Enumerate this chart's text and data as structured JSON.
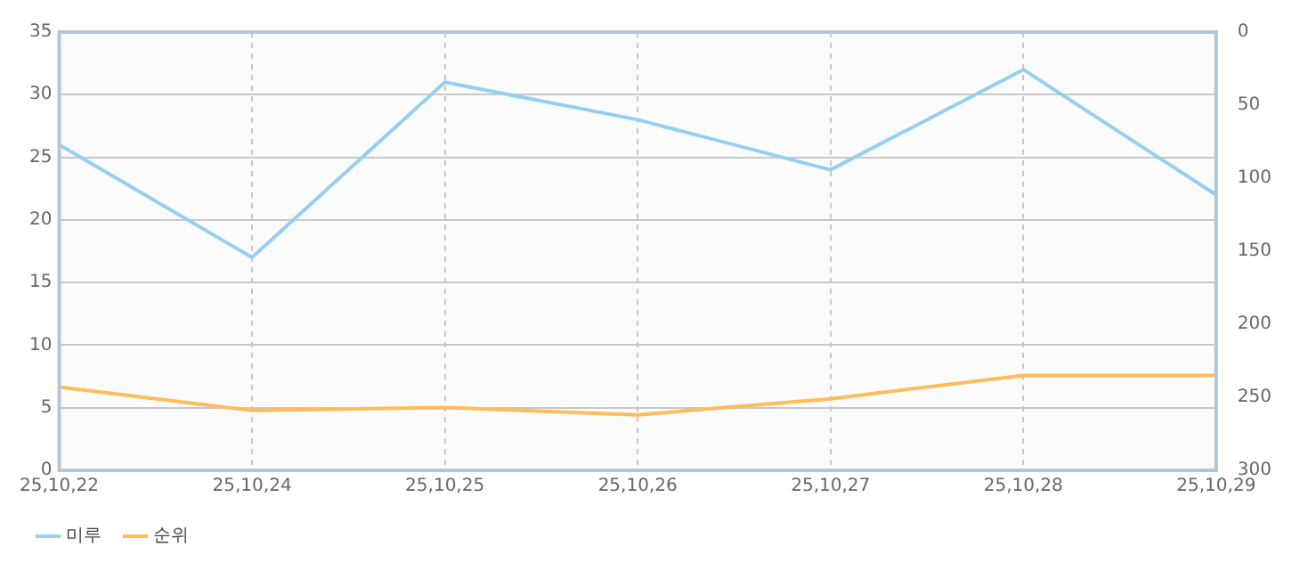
{
  "chart_data": {
    "type": "line",
    "categories": [
      "25,10,22",
      "25,10,24",
      "25,10,25",
      "25,10,26",
      "25,10,27",
      "25,10,28",
      "25,10,29"
    ],
    "series": [
      {
        "name": "미루",
        "color": "#95d0f0",
        "values": [
          26,
          17,
          31,
          28,
          24,
          32,
          22
        ]
      },
      {
        "name": "순위",
        "color": "#fdbd5a",
        "axis": "y2",
        "values": [
          243,
          259,
          257,
          262,
          251,
          235,
          235
        ]
      }
    ],
    "ylim": [
      0,
      35
    ],
    "yticks": [
      0,
      5,
      10,
      15,
      20,
      25,
      30,
      35
    ],
    "y2lim": [
      300,
      0
    ],
    "y2ticks": [
      0,
      50,
      100,
      150,
      200,
      250,
      300
    ],
    "grid": true,
    "legend": "bottom",
    "marker": "none",
    "line_style": "solid"
  }
}
